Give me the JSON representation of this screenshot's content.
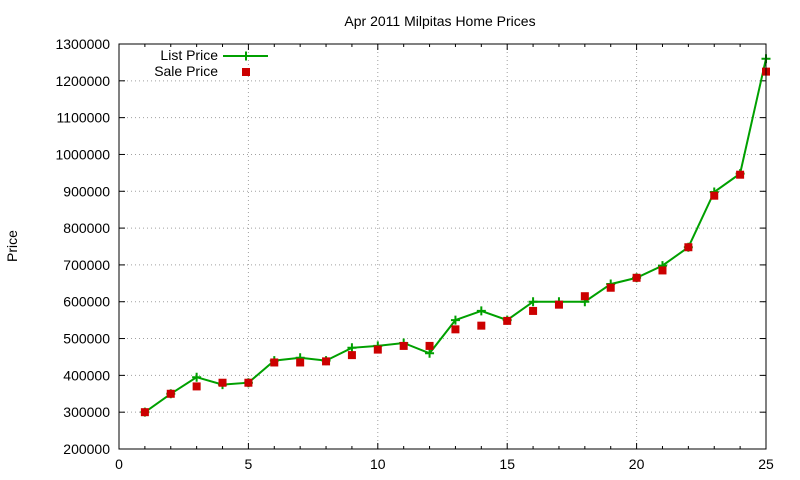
{
  "chart_data": {
    "type": "line",
    "title": "Apr 2011 Milpitas Home Prices",
    "xlabel": "",
    "ylabel": "Price",
    "xlim": [
      0,
      25
    ],
    "ylim": [
      200000,
      1300000
    ],
    "xticks": [
      "0",
      "5",
      "10",
      "15",
      "20",
      "25"
    ],
    "yticks": [
      "200000",
      "300000",
      "400000",
      "500000",
      "600000",
      "700000",
      "800000",
      "900000",
      "1000000",
      "1100000",
      "1200000",
      "1300000"
    ],
    "grid": true,
    "legend_position": "top-left",
    "series": [
      {
        "name": "List Price",
        "style": "line-with-plus-markers",
        "color": "#00a000",
        "x": [
          1,
          2,
          3,
          4,
          5,
          6,
          7,
          8,
          9,
          10,
          11,
          12,
          13,
          14,
          15,
          16,
          17,
          18,
          19,
          20,
          21,
          22,
          23,
          24,
          25
        ],
        "y": [
          300000,
          350000,
          395000,
          375000,
          380000,
          440000,
          448000,
          440000,
          475000,
          480000,
          488000,
          460000,
          550000,
          575000,
          550000,
          600000,
          600000,
          600000,
          648000,
          665000,
          698000,
          748000,
          898000,
          948000,
          1260000
        ]
      },
      {
        "name": "Sale Price",
        "style": "square-markers",
        "color": "#cc0000",
        "x": [
          1,
          2,
          3,
          4,
          5,
          6,
          7,
          8,
          9,
          10,
          11,
          12,
          13,
          14,
          15,
          16,
          17,
          18,
          19,
          20,
          21,
          22,
          23,
          24,
          25
        ],
        "y": [
          300000,
          350000,
          370000,
          380000,
          380000,
          435000,
          435000,
          438000,
          455000,
          470000,
          480000,
          480000,
          525000,
          535000,
          548000,
          575000,
          592000,
          615000,
          638000,
          665000,
          685000,
          748000,
          888000,
          945000,
          1225000
        ]
      }
    ]
  }
}
